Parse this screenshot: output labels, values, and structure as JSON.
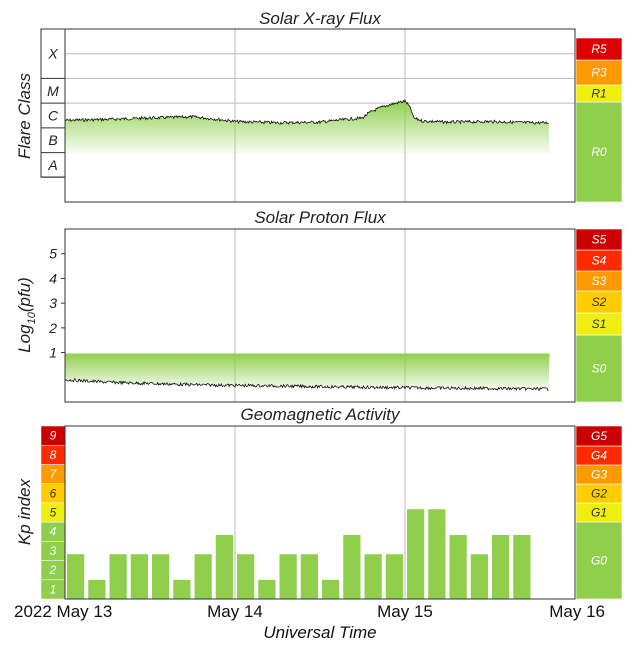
{
  "chart_data": [
    {
      "type": "line",
      "title": "Solar X-ray Flux",
      "ylabel": "Flare Class",
      "y_scale": "log",
      "ylim": [
        1e-09,
        0.01
      ],
      "y_ticks": [
        "A",
        "B",
        "C",
        "M",
        "X"
      ],
      "x_days": [
        13.0,
        13.25,
        13.5,
        13.75,
        14.0,
        14.25,
        14.5,
        14.75,
        15.0,
        15.05,
        15.1,
        15.25,
        15.5,
        15.75,
        15.85
      ],
      "y_values": [
        2e-06,
        2.2e-06,
        2.5e-06,
        2.8e-06,
        1.8e-06,
        1.6e-06,
        1.7e-06,
        2.5e-06,
        1.2e-05,
        2.5e-06,
        1.9e-06,
        1.7e-06,
        1.8e-06,
        1.6e-06,
        1.6e-06
      ],
      "scale": {
        "labels": [
          "R0",
          "R1",
          "R3",
          "R5"
        ],
        "colors": [
          "#8fcf4c",
          "#eeee11",
          "#ff9900",
          "#dd0000"
        ]
      }
    },
    {
      "type": "line",
      "title": "Solar Proton Flux",
      "ylabel_prefix": "Log",
      "ylabel_sub": "10",
      "ylabel_suffix": "(pfu)",
      "ylim": [
        -1.0,
        6.0
      ],
      "y_ticks": [
        "1",
        "2",
        "3",
        "4",
        "5"
      ],
      "x_days": [
        13.0,
        13.25,
        13.5,
        13.75,
        14.0,
        14.25,
        14.5,
        14.75,
        15.0,
        15.25,
        15.5,
        15.75,
        15.85
      ],
      "y_values": [
        -0.1,
        -0.2,
        -0.25,
        -0.3,
        -0.33,
        -0.35,
        -0.38,
        -0.4,
        -0.42,
        -0.44,
        -0.45,
        -0.47,
        -0.47
      ],
      "scale": {
        "labels": [
          "S0",
          "S1",
          "S2",
          "S3",
          "S4",
          "S5"
        ],
        "colors": [
          "#8fcf4c",
          "#eeee11",
          "#ffcc00",
          "#ff9900",
          "#ff2a00",
          "#cc0000"
        ]
      }
    },
    {
      "type": "bar",
      "title": "Geomagnetic Activity",
      "ylabel": "Kp index",
      "ylim": [
        0,
        9
      ],
      "kp_levels": [
        "1",
        "2",
        "3",
        "4",
        "5",
        "6",
        "7",
        "8",
        "9"
      ],
      "kp_colors": [
        "#8fcf4c",
        "#8fcf4c",
        "#8fcf4c",
        "#8fcf4c",
        "#eeee11",
        "#ffcc00",
        "#ff9900",
        "#ff2a00",
        "#cc0000"
      ],
      "bar_start_day": 13.0,
      "bar_hours": 3,
      "values": [
        2.33,
        1.0,
        2.33,
        2.33,
        2.33,
        1.0,
        2.33,
        3.33,
        2.33,
        1.0,
        2.33,
        2.33,
        1.0,
        3.33,
        2.33,
        2.33,
        4.67,
        4.67,
        3.33,
        2.33,
        3.33,
        3.33
      ],
      "scale": {
        "labels": [
          "G0",
          "G1",
          "G2",
          "G3",
          "G4",
          "G5"
        ],
        "colors": [
          "#8fcf4c",
          "#eeee11",
          "#ffcc00",
          "#ff9900",
          "#ff2a00",
          "#cc0000"
        ]
      }
    }
  ],
  "x_axis": {
    "xlim": [
      13,
      16
    ],
    "labels": [
      {
        "day": 13,
        "text": "2022 May 13"
      },
      {
        "day": 14,
        "text": "May 14"
      },
      {
        "day": 15,
        "text": "May 15"
      },
      {
        "day": 16,
        "text": "May 16"
      }
    ],
    "title": "Universal Time"
  },
  "colors": {
    "data_green": "#8fcf4c",
    "grid": "#bbbbbb",
    "frame": "#333333"
  }
}
